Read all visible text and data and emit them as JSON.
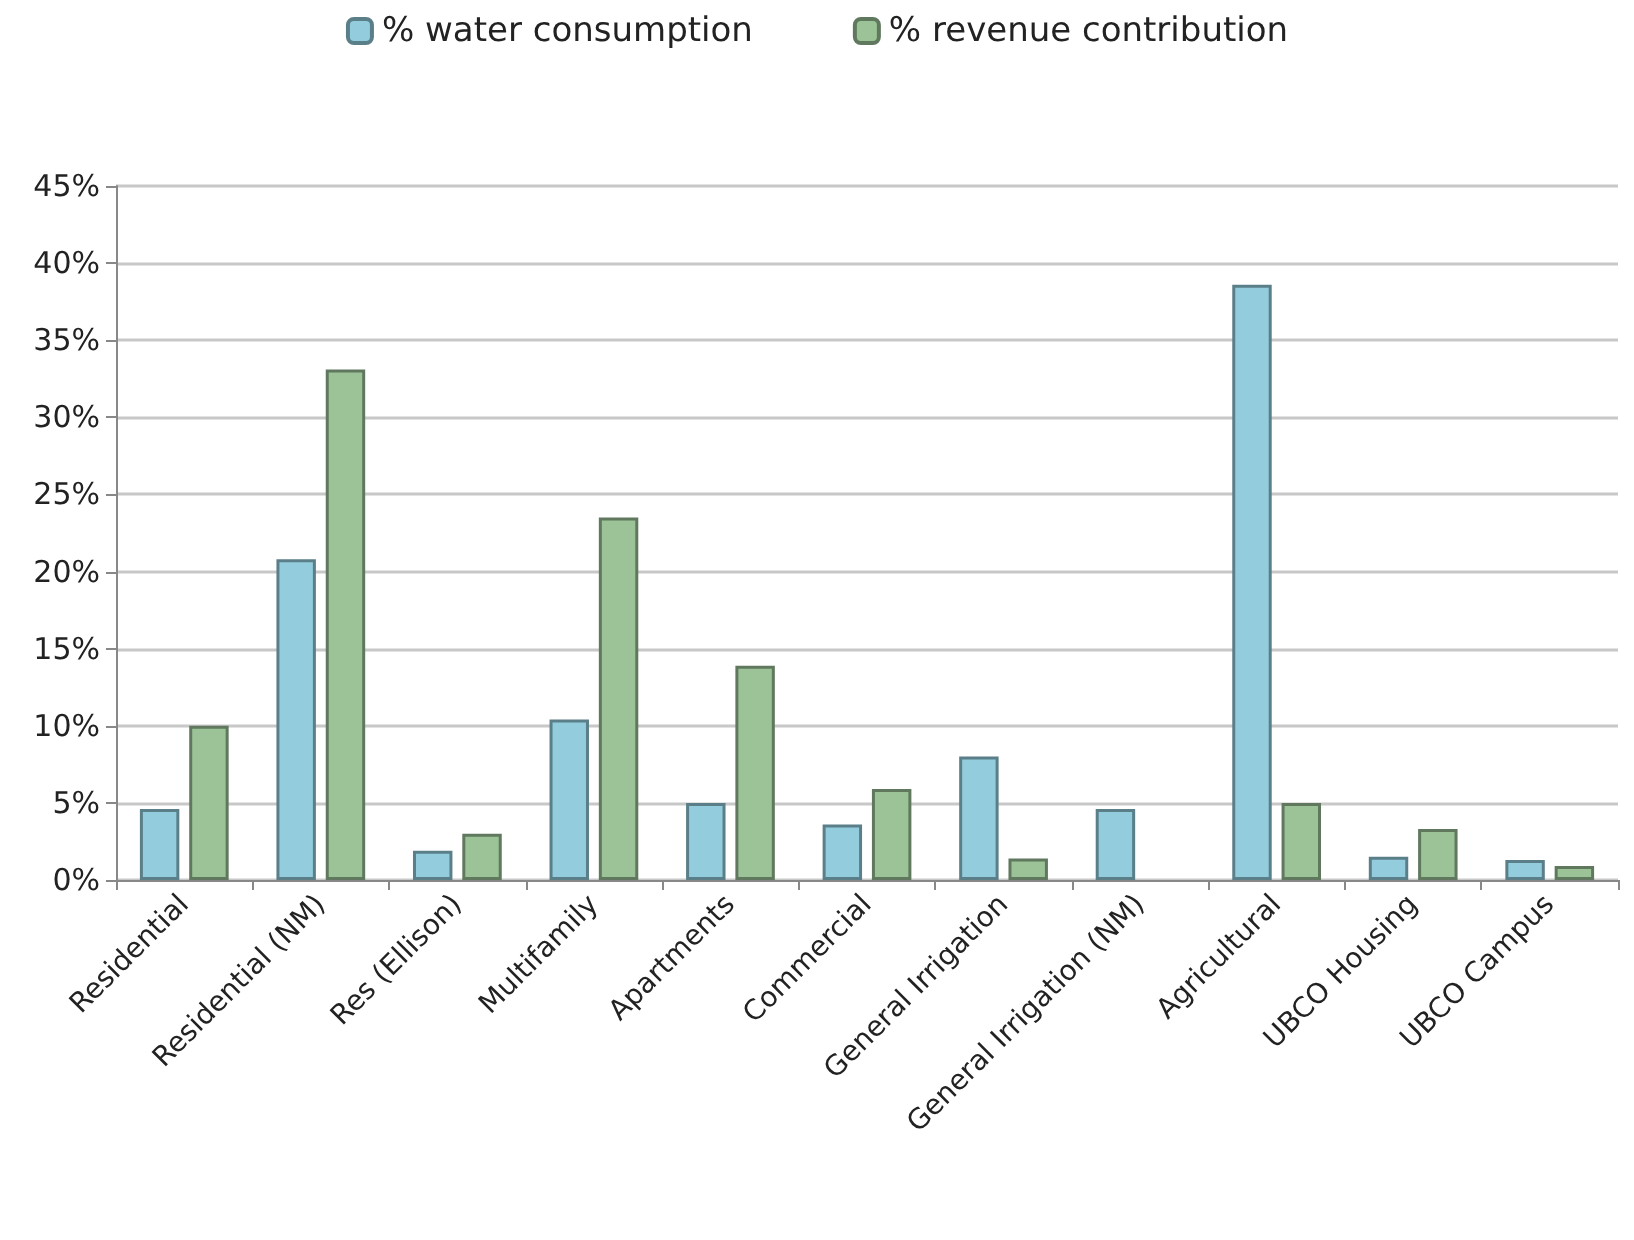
{
  "chart_data": {
    "type": "bar",
    "categories": [
      "Residential",
      "Residential (NM)",
      "Res (Ellison)",
      "Multifamily",
      "Apartments",
      "Commercial",
      "General Irrigation",
      "General Irrigation (NM)",
      "Agricultural",
      "UBCO Housing",
      "UBCO Campus"
    ],
    "series": [
      {
        "name": "% water consumption",
        "color": "#93cddd",
        "values": [
          4.6,
          20.8,
          1.9,
          10.4,
          5.0,
          3.6,
          8.0,
          4.6,
          38.6,
          1.5,
          1.3
        ]
      },
      {
        "name": "% revenue contribution",
        "color": "#9bc397",
        "values": [
          10.0,
          33.1,
          3.0,
          23.5,
          13.9,
          5.9,
          1.4,
          null,
          5.0,
          3.3,
          0.9
        ]
      }
    ],
    "ylim": [
      0,
      45
    ],
    "yticks": [
      {
        "value": 0,
        "label": "0%"
      },
      {
        "value": 5,
        "label": "5%"
      },
      {
        "value": 10,
        "label": "10%"
      },
      {
        "value": 15,
        "label": "15%"
      },
      {
        "value": 20,
        "label": "20%"
      },
      {
        "value": 25,
        "label": "25%"
      },
      {
        "value": 30,
        "label": "30%"
      },
      {
        "value": 35,
        "label": "35%"
      },
      {
        "value": 40,
        "label": "40%"
      },
      {
        "value": 45,
        "label": "45%"
      }
    ],
    "grid": "y",
    "legend": "top"
  }
}
